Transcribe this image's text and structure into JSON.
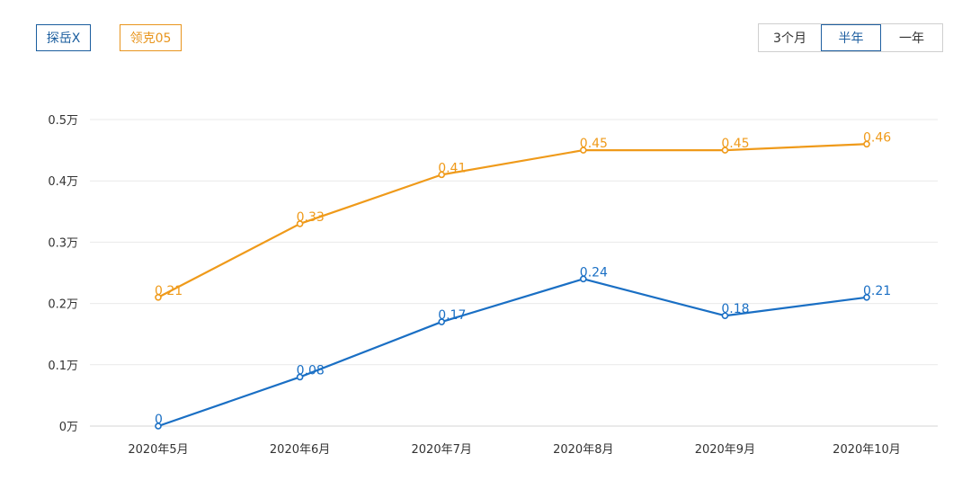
{
  "legend": {
    "items": [
      {
        "label": "探岳X",
        "color": "#1a5d9e"
      },
      {
        "label": "领克05",
        "color": "#e8951e"
      }
    ]
  },
  "range_selector": {
    "options": [
      "3个月",
      "半年",
      "一年"
    ],
    "selected": "半年"
  },
  "chart_data": {
    "type": "line",
    "categories": [
      "2020年5月",
      "2020年6月",
      "2020年7月",
      "2020年8月",
      "2020年9月",
      "2020年10月"
    ],
    "series": [
      {
        "name": "探岳X",
        "color": "#1a6fc4",
        "values": [
          0,
          0.08,
          0.17,
          0.24,
          0.18,
          0.21
        ],
        "labels": [
          "0",
          "0.08",
          "0.17",
          "0.24",
          "0.18",
          "0.21"
        ]
      },
      {
        "name": "领克05",
        "color": "#ef9a1a",
        "values": [
          0.21,
          0.33,
          0.41,
          0.45,
          0.45,
          0.46
        ],
        "labels": [
          "0.21",
          "0.33",
          "0.41",
          "0.45",
          "0.45",
          "0.46"
        ]
      }
    ],
    "ylim": [
      0,
      0.5
    ],
    "yticks": [
      0,
      0.1,
      0.2,
      0.3,
      0.4,
      0.5
    ],
    "ytick_labels": [
      "0万",
      "0.1万",
      "0.2万",
      "0.3万",
      "0.4万",
      "0.5万"
    ],
    "grid": true,
    "legend_position": "top-left"
  }
}
